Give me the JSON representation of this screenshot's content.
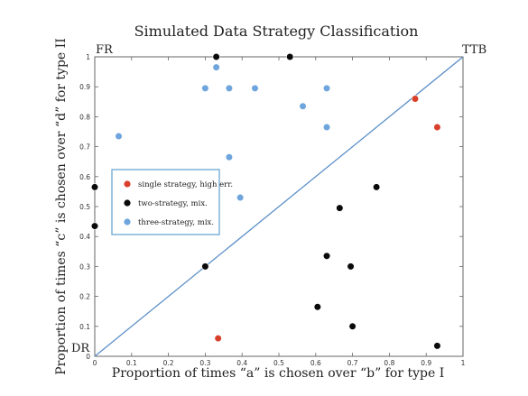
{
  "chart_data": {
    "type": "scatter",
    "title": "Simulated Data Strategy Classification",
    "xlabel": "Proportion of times “a” is chosen over “b” for type I",
    "ylabel": "Proportion of times “c” is chosen over “d” for type II",
    "xlim": [
      0,
      1
    ],
    "ylim": [
      0,
      1
    ],
    "xticks": [
      "0",
      "0.1",
      "0.2",
      "0.3",
      "0.4",
      "0.5",
      "0.6",
      "0.7",
      "0.8",
      "0.9",
      "1"
    ],
    "yticks": [
      "0",
      "0.1",
      "0.2",
      "0.3",
      "0.4",
      "0.5",
      "0.6",
      "0.7",
      "0.8",
      "0.9",
      "1"
    ],
    "corner_labels": {
      "top_left": "FR",
      "top_right": "TTB",
      "bottom_left": "DR"
    },
    "reference_line": {
      "from": [
        0,
        0
      ],
      "to": [
        1,
        1
      ]
    },
    "legend_position": "left-center",
    "series": [
      {
        "name": "single strategy, high err.",
        "color": "#d9402b",
        "points": [
          [
            0.87,
            0.86
          ],
          [
            0.93,
            0.765
          ],
          [
            0.335,
            0.06
          ]
        ]
      },
      {
        "name": "two-strategy, mix.",
        "color": "#0a0a0a",
        "points": [
          [
            0.33,
            1.0
          ],
          [
            0.53,
            1.0
          ],
          [
            0.0,
            0.565
          ],
          [
            0.0,
            0.435
          ],
          [
            0.665,
            0.495
          ],
          [
            0.765,
            0.565
          ],
          [
            0.63,
            0.335
          ],
          [
            0.695,
            0.3
          ],
          [
            0.3,
            0.3
          ],
          [
            0.605,
            0.165
          ],
          [
            0.7,
            0.1
          ],
          [
            0.93,
            0.035
          ]
        ]
      },
      {
        "name": "three-strategy, mix.",
        "color": "#6fa5dd",
        "points": [
          [
            0.33,
            0.965
          ],
          [
            0.3,
            0.895
          ],
          [
            0.365,
            0.895
          ],
          [
            0.435,
            0.895
          ],
          [
            0.63,
            0.895
          ],
          [
            0.565,
            0.835
          ],
          [
            0.63,
            0.765
          ],
          [
            0.065,
            0.735
          ],
          [
            0.365,
            0.665
          ],
          [
            0.395,
            0.53
          ]
        ]
      }
    ]
  }
}
